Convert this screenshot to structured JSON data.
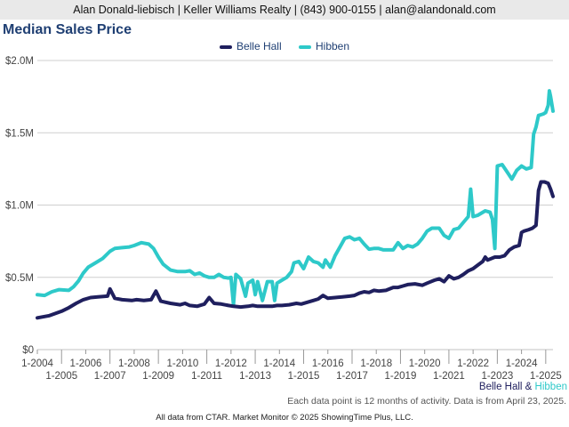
{
  "header": {
    "contact_line": "Alan Donald-liebisch | Keller Williams Realty | (843) 900-0155 | alan@alandonald.com"
  },
  "note": "Each data point is 12 months of activity. Data is from April 23, 2025.",
  "footer": "All data from CTAR. Market Monitor © 2025 ShowingTime Plus, LLC.",
  "series_key": {
    "first": "Belle Hall",
    "joiner": " & ",
    "second": "Hibben"
  },
  "colors": {
    "belle_hall": "#1f1f5e",
    "hibben": "#2ec9c9",
    "title": "#1f3f73",
    "grid": "#cfcfcf"
  },
  "chart_data": {
    "type": "line",
    "title": "Median Sales Price",
    "xlabel": "",
    "ylabel": "",
    "ylim": [
      0,
      2000000
    ],
    "xlim": [
      2004.0,
      2025.3
    ],
    "y_ticks": [
      {
        "value": 0,
        "label": "$0"
      },
      {
        "value": 500000,
        "label": "$0.5M"
      },
      {
        "value": 1000000,
        "label": "$1.0M"
      },
      {
        "value": 1500000,
        "label": "$1.5M"
      },
      {
        "value": 2000000,
        "label": "$2.0M"
      }
    ],
    "x_ticks": [
      {
        "value": 2004,
        "label": "1-2004"
      },
      {
        "value": 2005,
        "label": "1-2005"
      },
      {
        "value": 2006,
        "label": "1-2006"
      },
      {
        "value": 2007,
        "label": "1-2007"
      },
      {
        "value": 2008,
        "label": "1-2008"
      },
      {
        "value": 2009,
        "label": "1-2009"
      },
      {
        "value": 2010,
        "label": "1-2010"
      },
      {
        "value": 2011,
        "label": "1-2011"
      },
      {
        "value": 2012,
        "label": "1-2012"
      },
      {
        "value": 2013,
        "label": "1-2013"
      },
      {
        "value": 2014,
        "label": "1-2014"
      },
      {
        "value": 2015,
        "label": "1-2015"
      },
      {
        "value": 2016,
        "label": "1-2016"
      },
      {
        "value": 2017,
        "label": "1-2017"
      },
      {
        "value": 2018,
        "label": "1-2018"
      },
      {
        "value": 2019,
        "label": "1-2019"
      },
      {
        "value": 2020,
        "label": "1-2020"
      },
      {
        "value": 2021,
        "label": "1-2021"
      },
      {
        "value": 2022,
        "label": "1-2022"
      },
      {
        "value": 2023,
        "label": "1-2023"
      },
      {
        "value": 2024,
        "label": "1-2024"
      },
      {
        "value": 2025,
        "label": "1-2025"
      }
    ],
    "grid": true,
    "legend_position": "top-center",
    "series": [
      {
        "name": "Belle Hall",
        "color": "#1f1f5e",
        "points": [
          [
            2004.0,
            220000
          ],
          [
            2004.5,
            235000
          ],
          [
            2005.0,
            265000
          ],
          [
            2005.3,
            290000
          ],
          [
            2005.6,
            320000
          ],
          [
            2005.9,
            345000
          ],
          [
            2006.2,
            360000
          ],
          [
            2006.5,
            365000
          ],
          [
            2006.9,
            370000
          ],
          [
            2007.0,
            420000
          ],
          [
            2007.2,
            355000
          ],
          [
            2007.5,
            345000
          ],
          [
            2007.9,
            340000
          ],
          [
            2008.1,
            345000
          ],
          [
            2008.4,
            340000
          ],
          [
            2008.7,
            345000
          ],
          [
            2008.9,
            405000
          ],
          [
            2009.1,
            335000
          ],
          [
            2009.5,
            320000
          ],
          [
            2009.9,
            310000
          ],
          [
            2010.1,
            320000
          ],
          [
            2010.3,
            305000
          ],
          [
            2010.6,
            300000
          ],
          [
            2010.9,
            315000
          ],
          [
            2011.1,
            360000
          ],
          [
            2011.3,
            320000
          ],
          [
            2011.6,
            315000
          ],
          [
            2011.9,
            305000
          ],
          [
            2012.1,
            300000
          ],
          [
            2012.4,
            295000
          ],
          [
            2012.7,
            300000
          ],
          [
            2012.9,
            305000
          ],
          [
            2013.1,
            300000
          ],
          [
            2013.4,
            300000
          ],
          [
            2013.7,
            300000
          ],
          [
            2013.9,
            305000
          ],
          [
            2014.1,
            305000
          ],
          [
            2014.4,
            310000
          ],
          [
            2014.7,
            320000
          ],
          [
            2014.9,
            315000
          ],
          [
            2015.1,
            325000
          ],
          [
            2015.4,
            340000
          ],
          [
            2015.6,
            350000
          ],
          [
            2015.8,
            375000
          ],
          [
            2016.0,
            355000
          ],
          [
            2016.3,
            360000
          ],
          [
            2016.6,
            365000
          ],
          [
            2016.9,
            370000
          ],
          [
            2017.1,
            375000
          ],
          [
            2017.3,
            390000
          ],
          [
            2017.5,
            400000
          ],
          [
            2017.7,
            395000
          ],
          [
            2017.9,
            410000
          ],
          [
            2018.1,
            405000
          ],
          [
            2018.4,
            410000
          ],
          [
            2018.7,
            430000
          ],
          [
            2018.9,
            430000
          ],
          [
            2019.1,
            440000
          ],
          [
            2019.3,
            450000
          ],
          [
            2019.6,
            455000
          ],
          [
            2019.9,
            445000
          ],
          [
            2020.1,
            460000
          ],
          [
            2020.4,
            480000
          ],
          [
            2020.6,
            490000
          ],
          [
            2020.8,
            470000
          ],
          [
            2021.0,
            510000
          ],
          [
            2021.2,
            490000
          ],
          [
            2021.4,
            500000
          ],
          [
            2021.6,
            520000
          ],
          [
            2021.8,
            545000
          ],
          [
            2022.0,
            560000
          ],
          [
            2022.2,
            585000
          ],
          [
            2022.4,
            610000
          ],
          [
            2022.5,
            640000
          ],
          [
            2022.6,
            620000
          ],
          [
            2022.9,
            640000
          ],
          [
            2023.1,
            640000
          ],
          [
            2023.3,
            650000
          ],
          [
            2023.5,
            690000
          ],
          [
            2023.7,
            710000
          ],
          [
            2023.9,
            720000
          ],
          [
            2024.0,
            810000
          ],
          [
            2024.1,
            820000
          ],
          [
            2024.3,
            830000
          ],
          [
            2024.45,
            840000
          ],
          [
            2024.6,
            860000
          ],
          [
            2024.7,
            1100000
          ],
          [
            2024.8,
            1160000
          ],
          [
            2024.95,
            1160000
          ],
          [
            2025.1,
            1150000
          ],
          [
            2025.2,
            1110000
          ],
          [
            2025.3,
            1060000
          ]
        ]
      },
      {
        "name": "Hibben",
        "color": "#2ec9c9",
        "points": [
          [
            2004.0,
            380000
          ],
          [
            2004.3,
            375000
          ],
          [
            2004.6,
            400000
          ],
          [
            2004.9,
            415000
          ],
          [
            2005.3,
            410000
          ],
          [
            2005.5,
            435000
          ],
          [
            2005.7,
            475000
          ],
          [
            2005.9,
            530000
          ],
          [
            2006.1,
            570000
          ],
          [
            2006.4,
            600000
          ],
          [
            2006.7,
            630000
          ],
          [
            2007.0,
            680000
          ],
          [
            2007.2,
            700000
          ],
          [
            2007.5,
            705000
          ],
          [
            2007.8,
            710000
          ],
          [
            2008.0,
            720000
          ],
          [
            2008.3,
            740000
          ],
          [
            2008.6,
            730000
          ],
          [
            2008.8,
            700000
          ],
          [
            2009.0,
            640000
          ],
          [
            2009.2,
            590000
          ],
          [
            2009.5,
            550000
          ],
          [
            2009.8,
            540000
          ],
          [
            2010.1,
            540000
          ],
          [
            2010.3,
            545000
          ],
          [
            2010.5,
            520000
          ],
          [
            2010.7,
            530000
          ],
          [
            2010.9,
            510000
          ],
          [
            2011.1,
            500000
          ],
          [
            2011.3,
            500000
          ],
          [
            2011.5,
            520000
          ],
          [
            2011.7,
            500000
          ],
          [
            2011.9,
            495000
          ],
          [
            2012.0,
            500000
          ],
          [
            2012.1,
            310000
          ],
          [
            2012.2,
            520000
          ],
          [
            2012.4,
            490000
          ],
          [
            2012.6,
            370000
          ],
          [
            2012.7,
            460000
          ],
          [
            2012.9,
            480000
          ],
          [
            2013.0,
            380000
          ],
          [
            2013.1,
            470000
          ],
          [
            2013.3,
            340000
          ],
          [
            2013.5,
            470000
          ],
          [
            2013.7,
            470000
          ],
          [
            2013.8,
            340000
          ],
          [
            2013.9,
            460000
          ],
          [
            2014.1,
            480000
          ],
          [
            2014.3,
            500000
          ],
          [
            2014.5,
            540000
          ],
          [
            2014.6,
            600000
          ],
          [
            2014.8,
            610000
          ],
          [
            2015.0,
            560000
          ],
          [
            2015.2,
            640000
          ],
          [
            2015.4,
            610000
          ],
          [
            2015.6,
            600000
          ],
          [
            2015.8,
            570000
          ],
          [
            2015.9,
            620000
          ],
          [
            2016.1,
            570000
          ],
          [
            2016.3,
            650000
          ],
          [
            2016.5,
            710000
          ],
          [
            2016.7,
            770000
          ],
          [
            2016.9,
            780000
          ],
          [
            2017.1,
            760000
          ],
          [
            2017.3,
            770000
          ],
          [
            2017.5,
            730000
          ],
          [
            2017.7,
            695000
          ],
          [
            2017.9,
            700000
          ],
          [
            2018.1,
            700000
          ],
          [
            2018.3,
            690000
          ],
          [
            2018.5,
            690000
          ],
          [
            2018.7,
            690000
          ],
          [
            2018.9,
            740000
          ],
          [
            2019.1,
            700000
          ],
          [
            2019.3,
            720000
          ],
          [
            2019.5,
            710000
          ],
          [
            2019.7,
            730000
          ],
          [
            2019.9,
            770000
          ],
          [
            2020.1,
            820000
          ],
          [
            2020.3,
            840000
          ],
          [
            2020.6,
            840000
          ],
          [
            2020.8,
            790000
          ],
          [
            2021.0,
            770000
          ],
          [
            2021.2,
            830000
          ],
          [
            2021.4,
            840000
          ],
          [
            2021.6,
            880000
          ],
          [
            2021.8,
            920000
          ],
          [
            2021.9,
            1110000
          ],
          [
            2022.0,
            920000
          ],
          [
            2022.2,
            930000
          ],
          [
            2022.5,
            960000
          ],
          [
            2022.7,
            950000
          ],
          [
            2022.8,
            900000
          ],
          [
            2022.9,
            700000
          ],
          [
            2023.0,
            1270000
          ],
          [
            2023.2,
            1280000
          ],
          [
            2023.4,
            1230000
          ],
          [
            2023.6,
            1180000
          ],
          [
            2023.8,
            1240000
          ],
          [
            2024.0,
            1270000
          ],
          [
            2024.2,
            1250000
          ],
          [
            2024.4,
            1260000
          ],
          [
            2024.5,
            1490000
          ],
          [
            2024.6,
            1540000
          ],
          [
            2024.7,
            1620000
          ],
          [
            2024.9,
            1630000
          ],
          [
            2025.0,
            1640000
          ],
          [
            2025.1,
            1690000
          ],
          [
            2025.15,
            1790000
          ],
          [
            2025.2,
            1750000
          ],
          [
            2025.3,
            1650000
          ]
        ]
      }
    ]
  }
}
